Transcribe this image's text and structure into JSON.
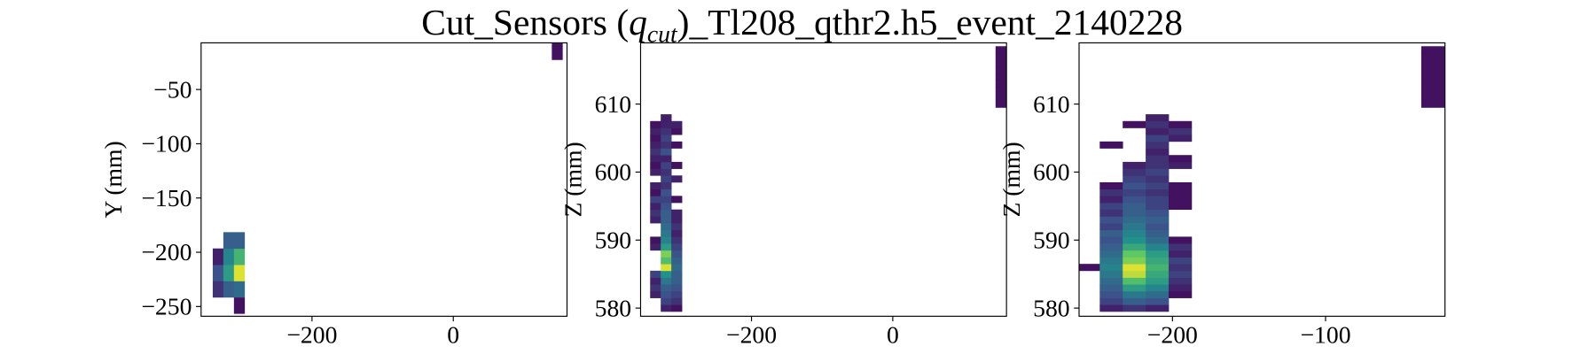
{
  "title": [
    "Cut_Sensors (",
    "q",
    "cut",
    ")_Tl208_qthr2.h5_event_2140228"
  ],
  "chart_data": [
    {
      "type": "heatmap",
      "colormap": "viridis",
      "clim": [
        0,
        1
      ],
      "ylabel": "Y (mm)",
      "xlim": [
        -357,
        161
      ],
      "ylim": [
        -259,
        -7
      ],
      "xticks": [
        {
          "value": -200,
          "label": "−200"
        },
        0
      ],
      "yticks": [
        {
          "value": -250,
          "label": "−250"
        },
        {
          "value": -200,
          "label": "−200"
        },
        {
          "value": -150,
          "label": "−150"
        },
        {
          "value": -100,
          "label": "−100"
        },
        {
          "value": -50,
          "label": "−50"
        }
      ],
      "bin_size": [
        15,
        15
      ],
      "x": [
        -333,
        -318,
        -303,
        147
      ],
      "y": [
        -249,
        -234,
        -219,
        -204,
        -189,
        -15
      ],
      "values": [
        [
          null,
          null,
          0.05,
          null
        ],
        [
          0.15,
          0.3,
          0.35,
          null
        ],
        [
          0.25,
          0.55,
          0.95,
          null
        ],
        [
          0.1,
          0.45,
          0.65,
          null
        ],
        [
          null,
          0.3,
          0.3,
          null
        ],
        [
          null,
          null,
          null,
          0.05
        ]
      ]
    },
    {
      "type": "heatmap",
      "colormap": "viridis",
      "clim": [
        0,
        1
      ],
      "ylabel": "Z (mm)",
      "xlim": [
        -357,
        161
      ],
      "ylim": [
        578.8,
        619
      ],
      "xticks": [
        {
          "value": -200,
          "label": "−200"
        },
        0
      ],
      "yticks": [
        580,
        590,
        600,
        610
      ],
      "bin_size": [
        15,
        1
      ],
      "x": [
        -336,
        -321,
        -306,
        153
      ],
      "y": [
        580,
        581,
        582,
        583,
        584,
        585,
        586,
        587,
        588,
        589,
        590,
        591,
        592,
        593,
        594,
        595,
        596,
        597,
        598,
        599,
        600,
        601,
        602,
        603,
        604,
        605,
        606,
        607,
        608,
        610,
        611,
        612,
        613,
        614,
        615,
        616,
        617,
        618
      ],
      "values": [
        [
          null,
          0.1,
          0.05,
          null
        ],
        [
          null,
          0.2,
          0.15,
          null
        ],
        [
          0.1,
          0.25,
          0.2,
          null
        ],
        [
          0.15,
          0.3,
          0.25,
          null
        ],
        [
          0.1,
          0.4,
          0.3,
          null
        ],
        [
          0.2,
          0.5,
          0.3,
          null
        ],
        [
          null,
          0.95,
          0.35,
          null
        ],
        [
          null,
          0.7,
          0.3,
          null
        ],
        [
          null,
          0.8,
          0.25,
          null
        ],
        [
          0.1,
          0.55,
          0.2,
          null
        ],
        [
          0.05,
          0.45,
          0.15,
          null
        ],
        [
          null,
          0.4,
          0.1,
          null
        ],
        [
          null,
          0.35,
          0.15,
          null
        ],
        [
          0.1,
          0.3,
          0.1,
          null
        ],
        [
          0.15,
          0.3,
          0.1,
          null
        ],
        [
          0.1,
          0.25,
          null,
          null
        ],
        [
          0.2,
          0.2,
          0.05,
          null
        ],
        [
          0.05,
          0.25,
          null,
          null
        ],
        [
          0.1,
          0.15,
          null,
          null
        ],
        [
          null,
          0.2,
          0.1,
          null
        ],
        [
          0.1,
          0.15,
          null,
          null
        ],
        [
          0.05,
          0.2,
          0.05,
          null
        ],
        [
          0.1,
          0.1,
          null,
          null
        ],
        [
          0.15,
          0.25,
          null,
          null
        ],
        [
          0.1,
          0.15,
          0.05,
          null
        ],
        [
          0.05,
          0.2,
          null,
          null
        ],
        [
          0.1,
          0.15,
          0.05,
          null
        ],
        [
          0.05,
          0.1,
          0.1,
          null
        ],
        [
          null,
          0.1,
          null,
          null
        ],
        [
          null,
          null,
          null,
          0.05
        ],
        [
          null,
          null,
          null,
          0.05
        ],
        [
          null,
          null,
          null,
          0.05
        ],
        [
          null,
          null,
          null,
          0.05
        ],
        [
          null,
          null,
          null,
          0.05
        ],
        [
          null,
          null,
          null,
          0.05
        ],
        [
          null,
          null,
          null,
          0.05
        ],
        [
          null,
          null,
          null,
          0.05
        ],
        [
          null,
          null,
          null,
          0.05
        ]
      ]
    },
    {
      "type": "heatmap",
      "colormap": "viridis",
      "clim": [
        0,
        1
      ],
      "ylabel": "Z (mm)",
      "xlim": [
        -261,
        -22
      ],
      "ylim": [
        578.8,
        619
      ],
      "xticks": [
        {
          "value": -200,
          "label": "−200"
        },
        {
          "value": -100,
          "label": "−100"
        }
      ],
      "yticks": [
        580,
        590,
        600,
        610
      ],
      "bin_size": [
        15,
        1
      ],
      "x": [
        -255,
        -240,
        -225,
        -210,
        -195,
        -30
      ],
      "y": [
        580,
        581,
        582,
        583,
        584,
        585,
        586,
        587,
        588,
        589,
        590,
        591,
        592,
        593,
        594,
        595,
        596,
        597,
        598,
        599,
        600,
        601,
        602,
        603,
        604,
        605,
        606,
        607,
        608,
        610,
        611,
        612,
        613,
        614,
        615,
        616,
        617,
        618
      ],
      "values": [
        [
          null,
          0.1,
          0.15,
          0.1,
          null,
          null
        ],
        [
          null,
          0.2,
          0.3,
          0.25,
          null,
          null
        ],
        [
          null,
          0.25,
          0.4,
          0.35,
          0.05,
          null
        ],
        [
          null,
          0.3,
          0.55,
          0.45,
          0.1,
          null
        ],
        [
          null,
          0.35,
          0.7,
          0.55,
          0.15,
          null
        ],
        [
          null,
          0.4,
          0.9,
          0.6,
          0.2,
          null
        ],
        [
          0.05,
          0.45,
          0.95,
          0.65,
          0.15,
          null
        ],
        [
          null,
          0.4,
          0.8,
          0.6,
          0.2,
          null
        ],
        [
          null,
          0.35,
          0.75,
          0.55,
          0.1,
          null
        ],
        [
          null,
          0.3,
          0.6,
          0.45,
          0.15,
          null
        ],
        [
          null,
          0.25,
          0.5,
          0.35,
          0.05,
          null
        ],
        [
          null,
          0.3,
          0.45,
          0.3,
          null,
          null
        ],
        [
          null,
          0.2,
          0.4,
          0.25,
          null,
          null
        ],
        [
          null,
          0.25,
          0.35,
          0.3,
          null,
          null
        ],
        [
          null,
          0.15,
          0.3,
          0.25,
          null,
          null
        ],
        [
          null,
          0.2,
          0.3,
          0.2,
          0.05,
          null
        ],
        [
          null,
          0.1,
          0.25,
          0.2,
          0.05,
          null
        ],
        [
          null,
          0.15,
          0.2,
          0.15,
          0.05,
          null
        ],
        [
          null,
          0.05,
          0.25,
          0.2,
          0.05,
          null
        ],
        [
          null,
          null,
          0.2,
          0.15,
          null,
          null
        ],
        [
          null,
          null,
          0.15,
          0.2,
          null,
          null
        ],
        [
          null,
          null,
          0.1,
          0.15,
          0.1,
          null
        ],
        [
          null,
          null,
          null,
          0.15,
          0.05,
          null
        ],
        [
          null,
          null,
          null,
          0.1,
          null,
          null
        ],
        [
          null,
          0.05,
          null,
          0.15,
          null,
          null
        ],
        [
          null,
          null,
          null,
          0.2,
          0.1,
          null
        ],
        [
          null,
          null,
          null,
          0.1,
          0.15,
          null
        ],
        [
          null,
          null,
          0.05,
          0.15,
          0.05,
          null
        ],
        [
          null,
          null,
          null,
          0.1,
          null,
          null
        ],
        [
          null,
          null,
          null,
          null,
          null,
          0.05
        ],
        [
          null,
          null,
          null,
          null,
          null,
          0.05
        ],
        [
          null,
          null,
          null,
          null,
          null,
          0.05
        ],
        [
          null,
          null,
          null,
          null,
          null,
          0.05
        ],
        [
          null,
          null,
          null,
          null,
          null,
          0.05
        ],
        [
          null,
          null,
          null,
          null,
          null,
          0.05
        ],
        [
          null,
          null,
          null,
          null,
          null,
          0.05
        ],
        [
          null,
          null,
          null,
          null,
          null,
          0.05
        ],
        [
          null,
          null,
          null,
          null,
          null,
          0.05
        ]
      ]
    }
  ]
}
